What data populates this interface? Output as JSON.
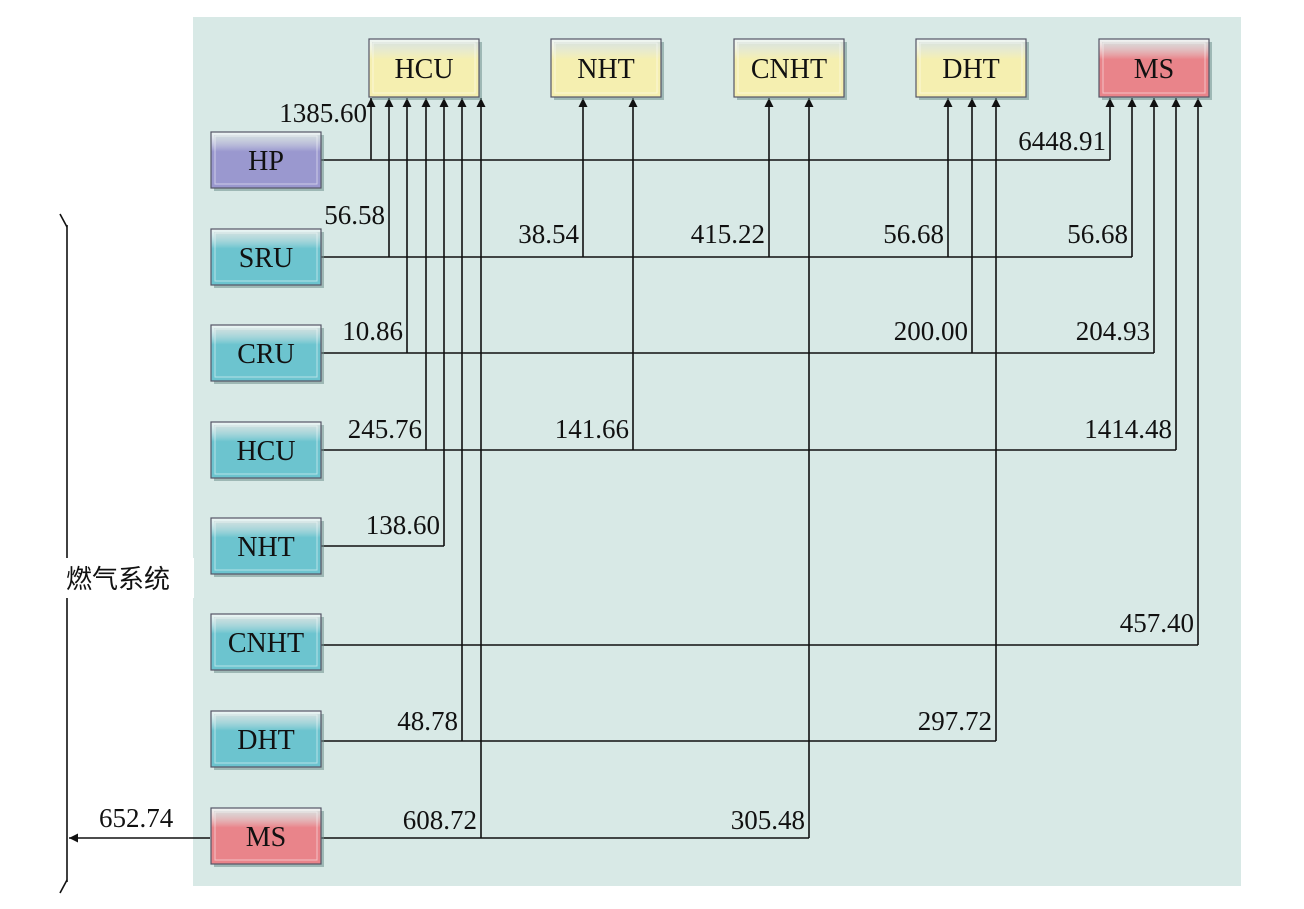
{
  "colors": {
    "panel": "#d8e9e6",
    "source_default": "#6cc4cf",
    "source_hp": "#9a98cf",
    "source_ms": "#e9848a",
    "sink_default": "#f5efb0",
    "sink_ms": "#e9848a",
    "line": "#111111"
  },
  "sinks": [
    {
      "id": "HCU",
      "label": "HCU"
    },
    {
      "id": "NHT",
      "label": "NHT"
    },
    {
      "id": "CNHT",
      "label": "CNHT"
    },
    {
      "id": "DHT",
      "label": "DHT"
    },
    {
      "id": "MS",
      "label": "MS"
    }
  ],
  "sources": [
    {
      "id": "HP",
      "label": "HP"
    },
    {
      "id": "SRU",
      "label": "SRU"
    },
    {
      "id": "CRU",
      "label": "CRU"
    },
    {
      "id": "HCU_src",
      "label": "HCU"
    },
    {
      "id": "NHT_src",
      "label": "NHT"
    },
    {
      "id": "CNHT_src",
      "label": "CNHT"
    },
    {
      "id": "DHT_src",
      "label": "DHT"
    },
    {
      "id": "MS_src",
      "label": "MS"
    }
  ],
  "flows": [
    {
      "from": "HP",
      "to": "HCU",
      "value": "1385.60"
    },
    {
      "from": "HP",
      "to": "MS",
      "value": "6448.91"
    },
    {
      "from": "SRU",
      "to": "HCU",
      "value": "56.58"
    },
    {
      "from": "SRU",
      "to": "NHT",
      "value": "38.54"
    },
    {
      "from": "SRU",
      "to": "CNHT",
      "value": "415.22"
    },
    {
      "from": "SRU",
      "to": "DHT",
      "value": "56.68"
    },
    {
      "from": "SRU",
      "to": "MS",
      "value": "56.68"
    },
    {
      "from": "CRU",
      "to": "HCU",
      "value": "10.86"
    },
    {
      "from": "CRU",
      "to": "DHT",
      "value": "200.00"
    },
    {
      "from": "CRU",
      "to": "MS",
      "value": "204.93"
    },
    {
      "from": "HCU_src",
      "to": "HCU",
      "value": "245.76"
    },
    {
      "from": "HCU_src",
      "to": "NHT",
      "value": "141.66"
    },
    {
      "from": "HCU_src",
      "to": "MS",
      "value": "1414.48"
    },
    {
      "from": "NHT_src",
      "to": "HCU",
      "value": "138.60"
    },
    {
      "from": "CNHT_src",
      "to": "MS",
      "value": "457.40"
    },
    {
      "from": "DHT_src",
      "to": "HCU",
      "value": "48.78"
    },
    {
      "from": "DHT_src",
      "to": "DHT",
      "value": "297.72"
    },
    {
      "from": "MS_src",
      "to": "HCU",
      "value": "608.72"
    },
    {
      "from": "MS_src",
      "to": "CNHT",
      "value": "305.48"
    }
  ],
  "fuel_gas": {
    "label": "燃气系统",
    "value": "652.74"
  }
}
